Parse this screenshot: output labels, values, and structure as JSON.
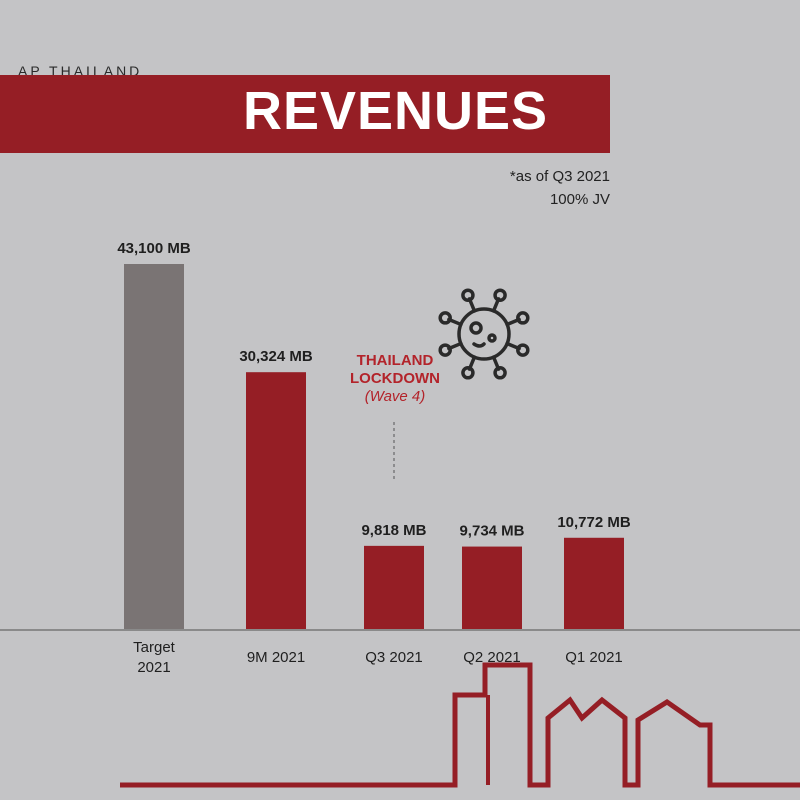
{
  "header": {
    "brand": "AP THAILAND",
    "title": "REVENUES"
  },
  "notes": {
    "line1": "*as of Q3 2021",
    "line2": "100% JV"
  },
  "annotation": {
    "line1": "THAILAND",
    "line2": "LOCKDOWN",
    "line3": "(Wave 4)",
    "icon": "virus-icon"
  },
  "colors": {
    "background": "#c4c4c6",
    "accent": "#951e25",
    "target_bar": "#7a7474",
    "annotation": "#b3232a"
  },
  "chart_data": {
    "type": "bar",
    "title": "REVENUES",
    "categories": [
      "Target\n2021",
      "9M 2021",
      "Q3 2021",
      "Q2 2021",
      "Q1 2021"
    ],
    "values": [
      43100,
      30324,
      9818,
      9734,
      10772
    ],
    "value_labels": [
      "43,100 MB",
      "30,324 MB",
      "9,818 MB",
      "9,734 MB",
      "10,772 MB"
    ],
    "unit": "MB",
    "bar_colors": [
      "#7a7474",
      "#951e25",
      "#951e25",
      "#951e25",
      "#951e25"
    ],
    "ylim": [
      0,
      43100
    ],
    "grid": false,
    "legend": "none"
  }
}
